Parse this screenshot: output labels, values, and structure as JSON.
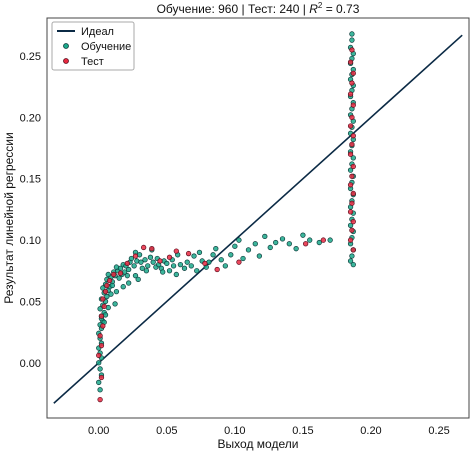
{
  "chart_data": {
    "type": "scatter",
    "title_parts": {
      "prefix": "Обучение: 960 | Тест: 240 | ",
      "r2_symbol": "R",
      "r2_exp": "2",
      "suffix": " = 0.73"
    },
    "xlabel": "Выход модели",
    "ylabel": "Результат линейной регрессии",
    "xlim": [
      -0.038,
      0.272
    ],
    "ylim": [
      -0.045,
      0.281
    ],
    "xticks": [
      0.0,
      0.05,
      0.1,
      0.15,
      0.2,
      0.25
    ],
    "xtick_labels": [
      "0.00",
      "0.05",
      "0.10",
      "0.15",
      "0.20",
      "0.25"
    ],
    "yticks": [
      0.0,
      0.05,
      0.1,
      0.15,
      0.2,
      0.25
    ],
    "ytick_labels": [
      "0.00",
      "0.05",
      "0.10",
      "0.15",
      "0.20",
      "0.25"
    ],
    "grid": false,
    "legend_position": "top-left",
    "ideal_line": {
      "name": "Идеал",
      "x": [
        -0.033,
        0.267
      ],
      "y": [
        -0.033,
        0.267
      ],
      "color": "#0b2a45"
    },
    "series": [
      {
        "name": "Обучение",
        "color": "#1aa88a",
        "edge": "#0d3b3b",
        "points": [
          [
            0.001,
            -0.022
          ],
          [
            0.0,
            -0.016
          ],
          [
            0.002,
            -0.01
          ],
          [
            0.001,
            -0.005
          ],
          [
            0.0,
            0.0
          ],
          [
            0.002,
            0.004
          ],
          [
            0.001,
            0.008
          ],
          [
            0.0,
            0.012
          ],
          [
            0.002,
            0.016
          ],
          [
            0.001,
            0.02
          ],
          [
            0.0,
            0.024
          ],
          [
            0.002,
            0.028
          ],
          [
            0.001,
            0.031
          ],
          [
            0.003,
            0.034
          ],
          [
            0.002,
            0.038
          ],
          [
            0.004,
            0.041
          ],
          [
            0.001,
            0.044
          ],
          [
            0.003,
            0.047
          ],
          [
            0.005,
            0.05
          ],
          [
            0.002,
            0.052
          ],
          [
            0.006,
            0.054
          ],
          [
            0.004,
            0.057
          ],
          [
            0.007,
            0.059
          ],
          [
            0.003,
            0.061
          ],
          [
            0.008,
            0.062
          ],
          [
            0.005,
            0.064
          ],
          [
            0.01,
            0.066
          ],
          [
            0.006,
            0.068
          ],
          [
            0.009,
            0.07
          ],
          [
            0.012,
            0.071
          ],
          [
            0.007,
            0.072
          ],
          [
            0.011,
            0.074
          ],
          [
            0.014,
            0.075
          ],
          [
            0.01,
            0.063
          ],
          [
            0.013,
            0.058
          ],
          [
            0.009,
            0.056
          ],
          [
            0.015,
            0.069
          ],
          [
            0.017,
            0.072
          ],
          [
            0.013,
            0.078
          ],
          [
            0.016,
            0.077
          ],
          [
            0.019,
            0.074
          ],
          [
            0.018,
            0.08
          ],
          [
            0.021,
            0.071
          ],
          [
            0.02,
            0.079
          ],
          [
            0.023,
            0.082
          ],
          [
            0.022,
            0.076
          ],
          [
            0.024,
            0.085
          ],
          [
            0.026,
            0.079
          ],
          [
            0.028,
            0.083
          ],
          [
            0.03,
            0.088
          ],
          [
            0.027,
            0.09
          ],
          [
            0.032,
            0.077
          ],
          [
            0.034,
            0.084
          ],
          [
            0.031,
            0.082
          ],
          [
            0.036,
            0.079
          ],
          [
            0.035,
            0.075
          ],
          [
            0.038,
            0.086
          ],
          [
            0.04,
            0.082
          ],
          [
            0.039,
            0.092
          ],
          [
            0.042,
            0.078
          ],
          [
            0.044,
            0.08
          ],
          [
            0.043,
            0.085
          ],
          [
            0.046,
            0.077
          ],
          [
            0.048,
            0.083
          ],
          [
            0.05,
            0.081
          ],
          [
            0.047,
            0.074
          ],
          [
            0.052,
            0.075
          ],
          [
            0.055,
            0.079
          ],
          [
            0.054,
            0.084
          ],
          [
            0.057,
            0.072
          ],
          [
            0.06,
            0.08
          ],
          [
            0.058,
            0.088
          ],
          [
            0.063,
            0.077
          ],
          [
            0.065,
            0.082
          ],
          [
            0.068,
            0.079
          ],
          [
            0.07,
            0.087
          ],
          [
            0.072,
            0.075
          ],
          [
            0.074,
            0.09
          ],
          [
            0.076,
            0.083
          ],
          [
            0.079,
            0.078
          ],
          [
            0.081,
            0.082
          ],
          [
            0.084,
            0.088
          ],
          [
            0.086,
            0.093
          ],
          [
            0.09,
            0.084
          ],
          [
            0.093,
            0.079
          ],
          [
            0.097,
            0.088
          ],
          [
            0.1,
            0.095
          ],
          [
            0.103,
            0.1
          ],
          [
            0.106,
            0.085
          ],
          [
            0.11,
            0.092
          ],
          [
            0.115,
            0.097
          ],
          [
            0.118,
            0.087
          ],
          [
            0.122,
            0.103
          ],
          [
            0.126,
            0.094
          ],
          [
            0.13,
            0.098
          ],
          [
            0.135,
            0.101
          ],
          [
            0.14,
            0.097
          ],
          [
            0.145,
            0.093
          ],
          [
            0.15,
            0.104
          ],
          [
            0.155,
            0.1
          ],
          [
            0.162,
            0.098
          ],
          [
            0.17,
            0.1
          ],
          [
            0.022,
            0.065
          ],
          [
            0.027,
            0.071
          ],
          [
            0.018,
            0.062
          ],
          [
            0.029,
            0.068
          ],
          [
            0.012,
            0.048
          ],
          [
            0.007,
            0.045
          ],
          [
            0.005,
            0.039
          ],
          [
            0.004,
            0.033
          ],
          [
            0.002,
            0.036
          ],
          [
            0.186,
            0.268
          ],
          [
            0.186,
            0.263
          ],
          [
            0.185,
            0.257
          ],
          [
            0.187,
            0.252
          ],
          [
            0.186,
            0.248
          ],
          [
            0.185,
            0.244
          ],
          [
            0.187,
            0.239
          ],
          [
            0.186,
            0.235
          ],
          [
            0.185,
            0.231
          ],
          [
            0.187,
            0.226
          ],
          [
            0.186,
            0.222
          ],
          [
            0.185,
            0.217
          ],
          [
            0.187,
            0.212
          ],
          [
            0.186,
            0.207
          ],
          [
            0.185,
            0.202
          ],
          [
            0.187,
            0.197
          ],
          [
            0.186,
            0.192
          ],
          [
            0.185,
            0.187
          ],
          [
            0.187,
            0.182
          ],
          [
            0.186,
            0.177
          ],
          [
            0.185,
            0.172
          ],
          [
            0.187,
            0.167
          ],
          [
            0.186,
            0.162
          ],
          [
            0.185,
            0.157
          ],
          [
            0.187,
            0.152
          ],
          [
            0.186,
            0.147
          ],
          [
            0.185,
            0.142
          ],
          [
            0.187,
            0.137
          ],
          [
            0.186,
            0.132
          ],
          [
            0.185,
            0.127
          ],
          [
            0.187,
            0.122
          ],
          [
            0.186,
            0.117
          ],
          [
            0.185,
            0.112
          ],
          [
            0.187,
            0.107
          ],
          [
            0.186,
            0.102
          ],
          [
            0.185,
            0.097
          ],
          [
            0.187,
            0.092
          ],
          [
            0.186,
            0.087
          ],
          [
            0.185,
            0.083
          ],
          [
            0.187,
            0.08
          ]
        ]
      },
      {
        "name": "Тест",
        "color": "#e8283f",
        "edge": "#5a1020",
        "points": [
          [
            0.001,
            -0.03
          ],
          [
            0.002,
            -0.012
          ],
          [
            0.0,
            0.006
          ],
          [
            0.002,
            0.014
          ],
          [
            0.001,
            0.022
          ],
          [
            0.003,
            0.03
          ],
          [
            0.002,
            0.038
          ],
          [
            0.004,
            0.046
          ],
          [
            0.003,
            0.052
          ],
          [
            0.005,
            0.058
          ],
          [
            0.006,
            0.063
          ],
          [
            0.008,
            0.067
          ],
          [
            0.011,
            0.072
          ],
          [
            0.016,
            0.073
          ],
          [
            0.021,
            0.081
          ],
          [
            0.027,
            0.087
          ],
          [
            0.033,
            0.094
          ],
          [
            0.039,
            0.093
          ],
          [
            0.045,
            0.083
          ],
          [
            0.052,
            0.086
          ],
          [
            0.057,
            0.091
          ],
          [
            0.066,
            0.089
          ],
          [
            0.078,
            0.081
          ],
          [
            0.087,
            0.076
          ],
          [
            0.103,
            0.082
          ],
          [
            0.152,
            0.097
          ],
          [
            0.165,
            0.1
          ],
          [
            0.186,
            0.255
          ],
          [
            0.185,
            0.245
          ],
          [
            0.187,
            0.236
          ],
          [
            0.186,
            0.228
          ],
          [
            0.185,
            0.219
          ],
          [
            0.187,
            0.21
          ],
          [
            0.186,
            0.2
          ],
          [
            0.185,
            0.193
          ],
          [
            0.187,
            0.185
          ],
          [
            0.186,
            0.178
          ],
          [
            0.185,
            0.17
          ],
          [
            0.187,
            0.16
          ],
          [
            0.186,
            0.152
          ],
          [
            0.185,
            0.145
          ],
          [
            0.187,
            0.138
          ],
          [
            0.186,
            0.13
          ],
          [
            0.185,
            0.123
          ],
          [
            0.187,
            0.115
          ],
          [
            0.186,
            0.108
          ],
          [
            0.185,
            0.1
          ],
          [
            0.187,
            0.092
          ]
        ]
      }
    ]
  }
}
